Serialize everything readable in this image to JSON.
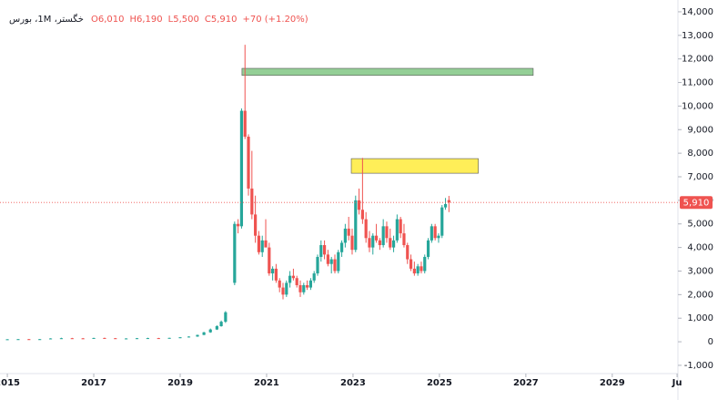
{
  "chart_data": {
    "type": "candlestick",
    "title": "خگستر، 1M، بورس",
    "ohlc_labels": [
      "O6,010",
      "H6,190",
      "L5,500",
      "C5,910"
    ],
    "change_label": "+70 (+1.20%)",
    "last_price": 5910,
    "last_price_label": "5,910",
    "up_color": "#26a69a",
    "down_color": "#ef5350",
    "xlim": [
      2014.83,
      2030.52
    ],
    "xticks": [
      2015,
      2017,
      2019,
      2021,
      2023,
      2025,
      2027,
      2029,
      {
        "value": 2030.5,
        "label": "Ju"
      }
    ],
    "ylim": [
      -1350,
      14500
    ],
    "yticks": [
      {
        "value": -1000,
        "label": "-1,000"
      },
      0,
      {
        "value": 1000,
        "label": "1,000"
      },
      {
        "value": 2000,
        "label": "2,000"
      },
      {
        "value": 3000,
        "label": "3,000"
      },
      {
        "value": 4000,
        "label": "4,000"
      },
      {
        "value": 5000,
        "label": "5,000"
      },
      {
        "value": 6000,
        "label": "6,000"
      },
      {
        "value": 7000,
        "label": "7,000"
      },
      {
        "value": 8000,
        "label": "8,000"
      },
      {
        "value": 9000,
        "label": "9,000"
      },
      {
        "value": 10000,
        "label": "10,000"
      },
      {
        "value": 11000,
        "label": "11,000"
      },
      {
        "value": 12000,
        "label": "12,000"
      },
      {
        "value": 13000,
        "label": "13,000"
      },
      {
        "value": 14000,
        "label": "14,000"
      }
    ],
    "grid": false,
    "zones": [
      {
        "x": [
          2020.43,
          2027.17
        ],
        "y": [
          11300,
          11600
        ],
        "color": "#81c784"
      },
      {
        "x": [
          2022.96,
          2025.9
        ],
        "y": [
          7150,
          7770
        ],
        "color": "#ffeb3b"
      }
    ],
    "x": [
      2015.0,
      2015.25,
      2015.5,
      2015.75,
      2016.0,
      2016.25,
      2016.5,
      2016.75,
      2017.0,
      2017.25,
      2017.5,
      2017.75,
      2018.0,
      2018.25,
      2018.5,
      2018.75,
      2019.0,
      2019.2,
      2019.4,
      2019.55,
      2019.7,
      2019.85,
      2019.95,
      2020.05,
      2020.26,
      2020.34,
      2020.42,
      2020.5,
      2020.58,
      2020.66,
      2020.74,
      2020.82,
      2020.9,
      2020.98,
      2021.06,
      2021.14,
      2021.22,
      2021.3,
      2021.38,
      2021.46,
      2021.54,
      2021.62,
      2021.7,
      2021.78,
      2021.86,
      2021.94,
      2022.02,
      2022.1,
      2022.18,
      2022.26,
      2022.34,
      2022.42,
      2022.5,
      2022.58,
      2022.66,
      2022.74,
      2022.82,
      2022.9,
      2022.98,
      2023.06,
      2023.14,
      2023.22,
      2023.3,
      2023.38,
      2023.46,
      2023.54,
      2023.62,
      2023.7,
      2023.78,
      2023.86,
      2023.94,
      2024.02,
      2024.1,
      2024.18,
      2024.26,
      2024.34,
      2024.42,
      2024.5,
      2024.58,
      2024.66,
      2024.74,
      2024.82,
      2024.9,
      2024.98,
      2025.06,
      2025.14,
      2025.22
    ],
    "open": [
      100,
      105,
      110,
      105,
      110,
      140,
      150,
      145,
      140,
      160,
      150,
      135,
      140,
      150,
      155,
      140,
      165,
      190,
      220,
      290,
      400,
      520,
      660,
      850,
      2500,
      5000,
      4900,
      9800,
      8700,
      6500,
      5400,
      4500,
      3800,
      4300,
      4000,
      2900,
      3100,
      2600,
      2300,
      2000,
      2500,
      2800,
      2700,
      2400,
      2100,
      2400,
      2300,
      2600,
      2900,
      3600,
      4100,
      3700,
      3300,
      3500,
      3000,
      3800,
      4200,
      4800,
      4500,
      3900,
      6000,
      5600,
      5200,
      4400,
      4000,
      4500,
      4300,
      4100,
      4900,
      4400,
      4000,
      4300,
      5200,
      4600,
      4100,
      3500,
      3100,
      2900,
      3200,
      3000,
      3600,
      4300,
      4900,
      4400,
      4500,
      5700,
      6010
    ],
    "high": [
      110,
      115,
      120,
      115,
      150,
      170,
      165,
      160,
      170,
      175,
      160,
      150,
      160,
      170,
      165,
      170,
      200,
      230,
      300,
      420,
      560,
      700,
      900,
      1300,
      5100,
      5200,
      9900,
      12600,
      8800,
      8100,
      6200,
      4700,
      4500,
      5200,
      4200,
      3200,
      3300,
      2700,
      2500,
      2600,
      3000,
      3100,
      2800,
      2600,
      2500,
      2600,
      2700,
      3000,
      3700,
      4300,
      4300,
      3900,
      3600,
      3700,
      3900,
      4300,
      5000,
      5300,
      4800,
      6200,
      6500,
      7800,
      5500,
      4700,
      4600,
      5000,
      4400,
      5200,
      5100,
      4800,
      4500,
      5400,
      5300,
      5000,
      4200,
      3700,
      3400,
      3300,
      3400,
      3700,
      4400,
      5000,
      5000,
      4600,
      5800,
      6100,
      6190
    ],
    "low": [
      95,
      100,
      100,
      100,
      105,
      130,
      135,
      130,
      135,
      140,
      130,
      120,
      130,
      140,
      130,
      135,
      150,
      180,
      210,
      280,
      380,
      500,
      640,
      800,
      2400,
      4600,
      4800,
      8600,
      6200,
      5200,
      4200,
      3700,
      3600,
      4100,
      2800,
      2600,
      2500,
      2100,
      1800,
      1900,
      2300,
      2600,
      2300,
      1900,
      2000,
      2200,
      2200,
      2500,
      2800,
      3400,
      3500,
      3200,
      2900,
      2900,
      2900,
      3600,
      4000,
      4300,
      3700,
      3800,
      5400,
      5000,
      4200,
      3800,
      3700,
      4200,
      3900,
      4000,
      4200,
      3900,
      3800,
      4200,
      4400,
      4000,
      3300,
      3000,
      2800,
      2800,
      2900,
      2900,
      3500,
      4200,
      4300,
      4200,
      4400,
      5600,
      5500
    ],
    "close": [
      105,
      110,
      105,
      110,
      140,
      150,
      145,
      140,
      160,
      150,
      135,
      140,
      150,
      155,
      140,
      165,
      190,
      220,
      290,
      400,
      520,
      660,
      850,
      1250,
      5000,
      4900,
      9800,
      8700,
      6500,
      5400,
      4500,
      3800,
      4300,
      4000,
      2900,
      3100,
      2600,
      2300,
      2000,
      2500,
      2800,
      2700,
      2400,
      2100,
      2400,
      2300,
      2600,
      2900,
      3600,
      4100,
      3700,
      3300,
      3500,
      3000,
      3800,
      4200,
      4800,
      4500,
      3900,
      6000,
      5600,
      5200,
      4400,
      4000,
      4500,
      4300,
      4100,
      4900,
      4400,
      4000,
      4300,
      5200,
      4600,
      4100,
      3500,
      3100,
      2900,
      3200,
      3000,
      3600,
      4300,
      4900,
      4400,
      4500,
      5700,
      5840,
      5910
    ]
  }
}
